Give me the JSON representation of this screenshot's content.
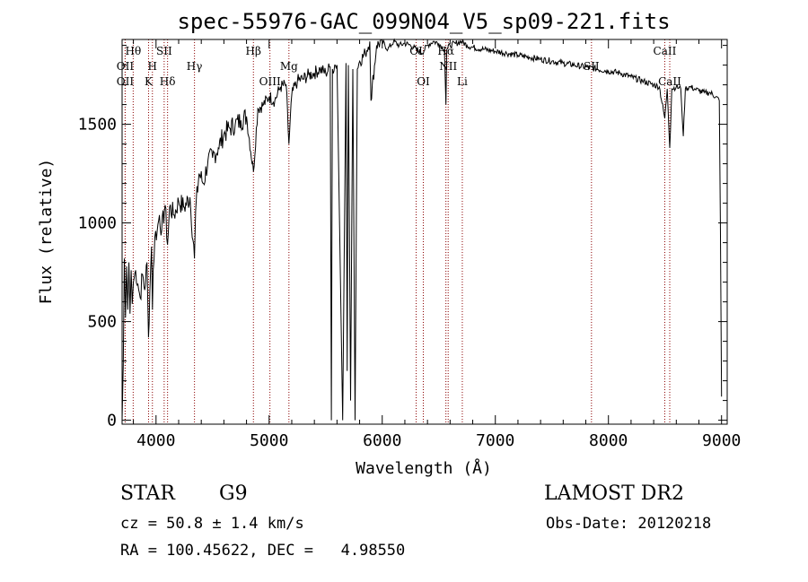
{
  "chart_data": {
    "type": "line",
    "title": "spec-55976-GAC_099N04_V5_sp09-221.fits",
    "xlabel": "Wavelength (Å)",
    "ylabel": "Flux (relative)",
    "xlim": [
      3700,
      9050
    ],
    "ylim": [
      -20,
      1930
    ],
    "xticks": [
      4000,
      5000,
      6000,
      7000,
      8000,
      9000
    ],
    "yticks": [
      0,
      500,
      1000,
      1500
    ],
    "grid": false,
    "series": [
      {
        "x": [
          3700,
          3710,
          3720,
          3730,
          3740,
          3750,
          3760,
          3770,
          3780,
          3790,
          3800,
          3820,
          3840,
          3860,
          3880,
          3900,
          3920,
          3933,
          3945,
          3960,
          3968,
          3975,
          3990,
          4010,
          4030,
          4050,
          4080,
          4102,
          4120,
          4160,
          4200,
          4250,
          4300,
          4340,
          4350,
          4380,
          4420,
          4460,
          4500,
          4550,
          4600,
          4650,
          4700,
          4750,
          4800,
          4861,
          4900,
          4950,
          5000,
          5050,
          5100,
          5150,
          5175,
          5200,
          5250,
          5300,
          5350,
          5400,
          5450,
          5500,
          5540,
          5550,
          5560,
          5580,
          5600,
          5650,
          5680,
          5690,
          5700,
          5720,
          5740,
          5760,
          5780,
          5800,
          5850,
          5890,
          5900,
          5950,
          6000,
          6050,
          6100,
          6150,
          6200,
          6250,
          6300,
          6350,
          6400,
          6450,
          6500,
          6550,
          6563,
          6570,
          6600,
          6650,
          6700,
          6750,
          6800,
          6900,
          7000,
          7100,
          7200,
          7300,
          7400,
          7500,
          7600,
          7700,
          7800,
          7900,
          8000,
          8100,
          8200,
          8300,
          8400,
          8450,
          8498,
          8520,
          8542,
          8560,
          8600,
          8640,
          8662,
          8680,
          8720,
          8760,
          8800,
          8850,
          8900,
          8950,
          8980,
          8990,
          9000
        ],
        "values": [
          0,
          280,
          820,
          520,
          780,
          560,
          800,
          540,
          760,
          590,
          700,
          760,
          690,
          620,
          740,
          660,
          800,
          420,
          650,
          880,
          560,
          760,
          930,
          960,
          1040,
          960,
          1090,
          890,
          1080,
          1040,
          1110,
          1080,
          1130,
          820,
          1060,
          1250,
          1200,
          1320,
          1330,
          1380,
          1450,
          1480,
          1500,
          1520,
          1540,
          1260,
          1580,
          1600,
          1640,
          1620,
          1690,
          1700,
          1400,
          1650,
          1720,
          1730,
          1750,
          1760,
          1780,
          1760,
          1790,
          0,
          1780,
          1800,
          1800,
          0,
          1810,
          250,
          1800,
          100,
          1780,
          0,
          1780,
          1820,
          1860,
          1920,
          1620,
          1900,
          1920,
          1880,
          1920,
          1900,
          1910,
          1900,
          1880,
          1860,
          1900,
          1920,
          1910,
          1880,
          1600,
          1880,
          1900,
          1910,
          1920,
          1900,
          1890,
          1880,
          1870,
          1860,
          1850,
          1840,
          1830,
          1820,
          1810,
          1800,
          1790,
          1780,
          1770,
          1760,
          1740,
          1720,
          1700,
          1690,
          1530,
          1680,
          1380,
          1680,
          1690,
          1680,
          1440,
          1680,
          1690,
          1680,
          1670,
          1660,
          1660,
          1640,
          1620,
          1000,
          120
        ]
      }
    ],
    "lines": [
      {
        "label": "Hθ",
        "wl": 3798,
        "row": 0
      },
      {
        "label": "OII",
        "wl": 3727,
        "row": 1
      },
      {
        "label": "OII",
        "wl": 3727,
        "row": 2
      },
      {
        "label": "H",
        "wl": 3968,
        "row": 1
      },
      {
        "label": "K",
        "wl": 3934,
        "row": 2
      },
      {
        "label": "SII",
        "wl": 4072,
        "row": 0
      },
      {
        "label": "Hδ",
        "wl": 4102,
        "row": 2
      },
      {
        "label": "Hγ",
        "wl": 4340,
        "row": 1
      },
      {
        "label": "Hβ",
        "wl": 4861,
        "row": 0
      },
      {
        "label": "OIII",
        "wl": 5007,
        "row": 2
      },
      {
        "label": "Mg",
        "wl": 5175,
        "row": 1
      },
      {
        "label": "OI",
        "wl": 6300,
        "row": 0
      },
      {
        "label": "OI",
        "wl": 6363,
        "row": 2
      },
      {
        "label": "Hα",
        "wl": 6563,
        "row": 0
      },
      {
        "label": "NII",
        "wl": 6583,
        "row": 1
      },
      {
        "label": "Li",
        "wl": 6708,
        "row": 2
      },
      {
        "label": "SII",
        "wl": 7850,
        "row": 1
      },
      {
        "label": "CaII",
        "wl": 8498,
        "row": 0
      },
      {
        "label": "CaII",
        "wl": 8542,
        "row": 2
      }
    ]
  },
  "info": {
    "object_class": "STAR",
    "subclass": "G9",
    "survey": "LAMOST DR2",
    "cz": "cz = 50.8 ± 1.4 km/s",
    "obs_date": "Obs-Date: 20120218",
    "coords": "RA = 100.45622, DEC =   4.98550"
  },
  "colors": {
    "spectrum": "#000000",
    "line_markers": "#8b0000",
    "background": "#ffffff"
  }
}
